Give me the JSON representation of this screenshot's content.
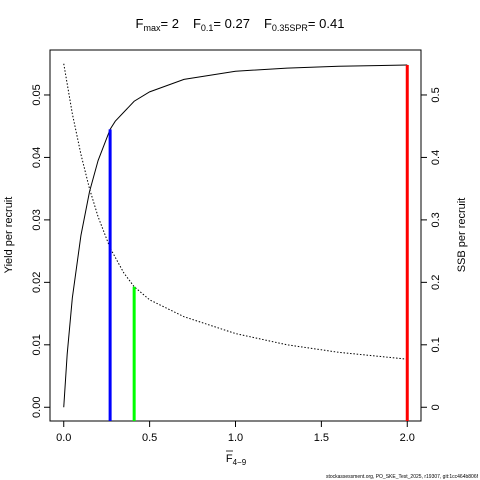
{
  "chart_data": {
    "type": "line",
    "title": {
      "fmax_label": "F",
      "fmax_sub": "max",
      "fmax_value": "= 2",
      "f01_label": "F",
      "f01_sub": "0.1",
      "f01_value": "= 0.27",
      "fspr_label": "F",
      "fspr_sub": "0.35SPR",
      "fspr_value": "= 0.41"
    },
    "xlabel": {
      "main": "F",
      "sub": "4−9"
    },
    "ylabel_left": "Yield per recruit",
    "ylabel_right": "SSB per recruit",
    "xlim": [
      -0.08,
      2.08
    ],
    "ylim_left": [
      -0.0022,
      0.0572
    ],
    "ylim_right": [
      -0.022,
      0.572
    ],
    "x_ticks": [
      0,
      0.5,
      1,
      1.5,
      2
    ],
    "x_tick_labels": [
      "0.0",
      "0.5",
      "1.0",
      "1.5",
      "2.0"
    ],
    "y_left_ticks": [
      0,
      0.01,
      0.02,
      0.03,
      0.04,
      0.05
    ],
    "y_left_tick_labels": [
      "0.00",
      "0.01",
      "0.02",
      "0.03",
      "0.04",
      "0.05"
    ],
    "y_right_ticks": [
      0,
      0.1,
      0.2,
      0.3,
      0.4,
      0.5
    ],
    "y_right_tick_labels": [
      "0",
      "0.1",
      "0.2",
      "0.3",
      "0.4",
      "0.5"
    ],
    "series": [
      {
        "axis": "left",
        "style": "solid",
        "color": "#000000",
        "x": [
          0,
          0.02,
          0.05,
          0.1,
          0.15,
          0.2,
          0.27,
          0.3,
          0.41,
          0.5,
          0.7,
          1.0,
          1.3,
          1.6,
          2.0
        ],
        "y": [
          0,
          0.0085,
          0.0175,
          0.0275,
          0.0345,
          0.0395,
          0.0445,
          0.0458,
          0.049,
          0.0505,
          0.0525,
          0.0538,
          0.0543,
          0.0546,
          0.0548
        ]
      },
      {
        "axis": "right",
        "style": "dotted",
        "color": "#000000",
        "x": [
          0,
          0.05,
          0.1,
          0.15,
          0.2,
          0.27,
          0.35,
          0.41,
          0.5,
          0.7,
          1.0,
          1.3,
          1.6,
          2.0
        ],
        "y": [
          0.55,
          0.47,
          0.405,
          0.35,
          0.305,
          0.255,
          0.215,
          0.193,
          0.172,
          0.145,
          0.118,
          0.1,
          0.088,
          0.077
        ]
      }
    ],
    "reference_lines": [
      {
        "x": 0.27,
        "axis": "left",
        "y_top": 0.0445,
        "color": "#0000ff"
      },
      {
        "x": 0.41,
        "axis": "right",
        "y_top": 0.193,
        "color": "#00ff00"
      },
      {
        "x": 2.0,
        "axis": "left",
        "y_top": 0.0548,
        "color": "#ff0000"
      }
    ],
    "footnote": "stockassessment.org, PO_SKE_Test_2025, r19307, git:1cc464b806f"
  }
}
